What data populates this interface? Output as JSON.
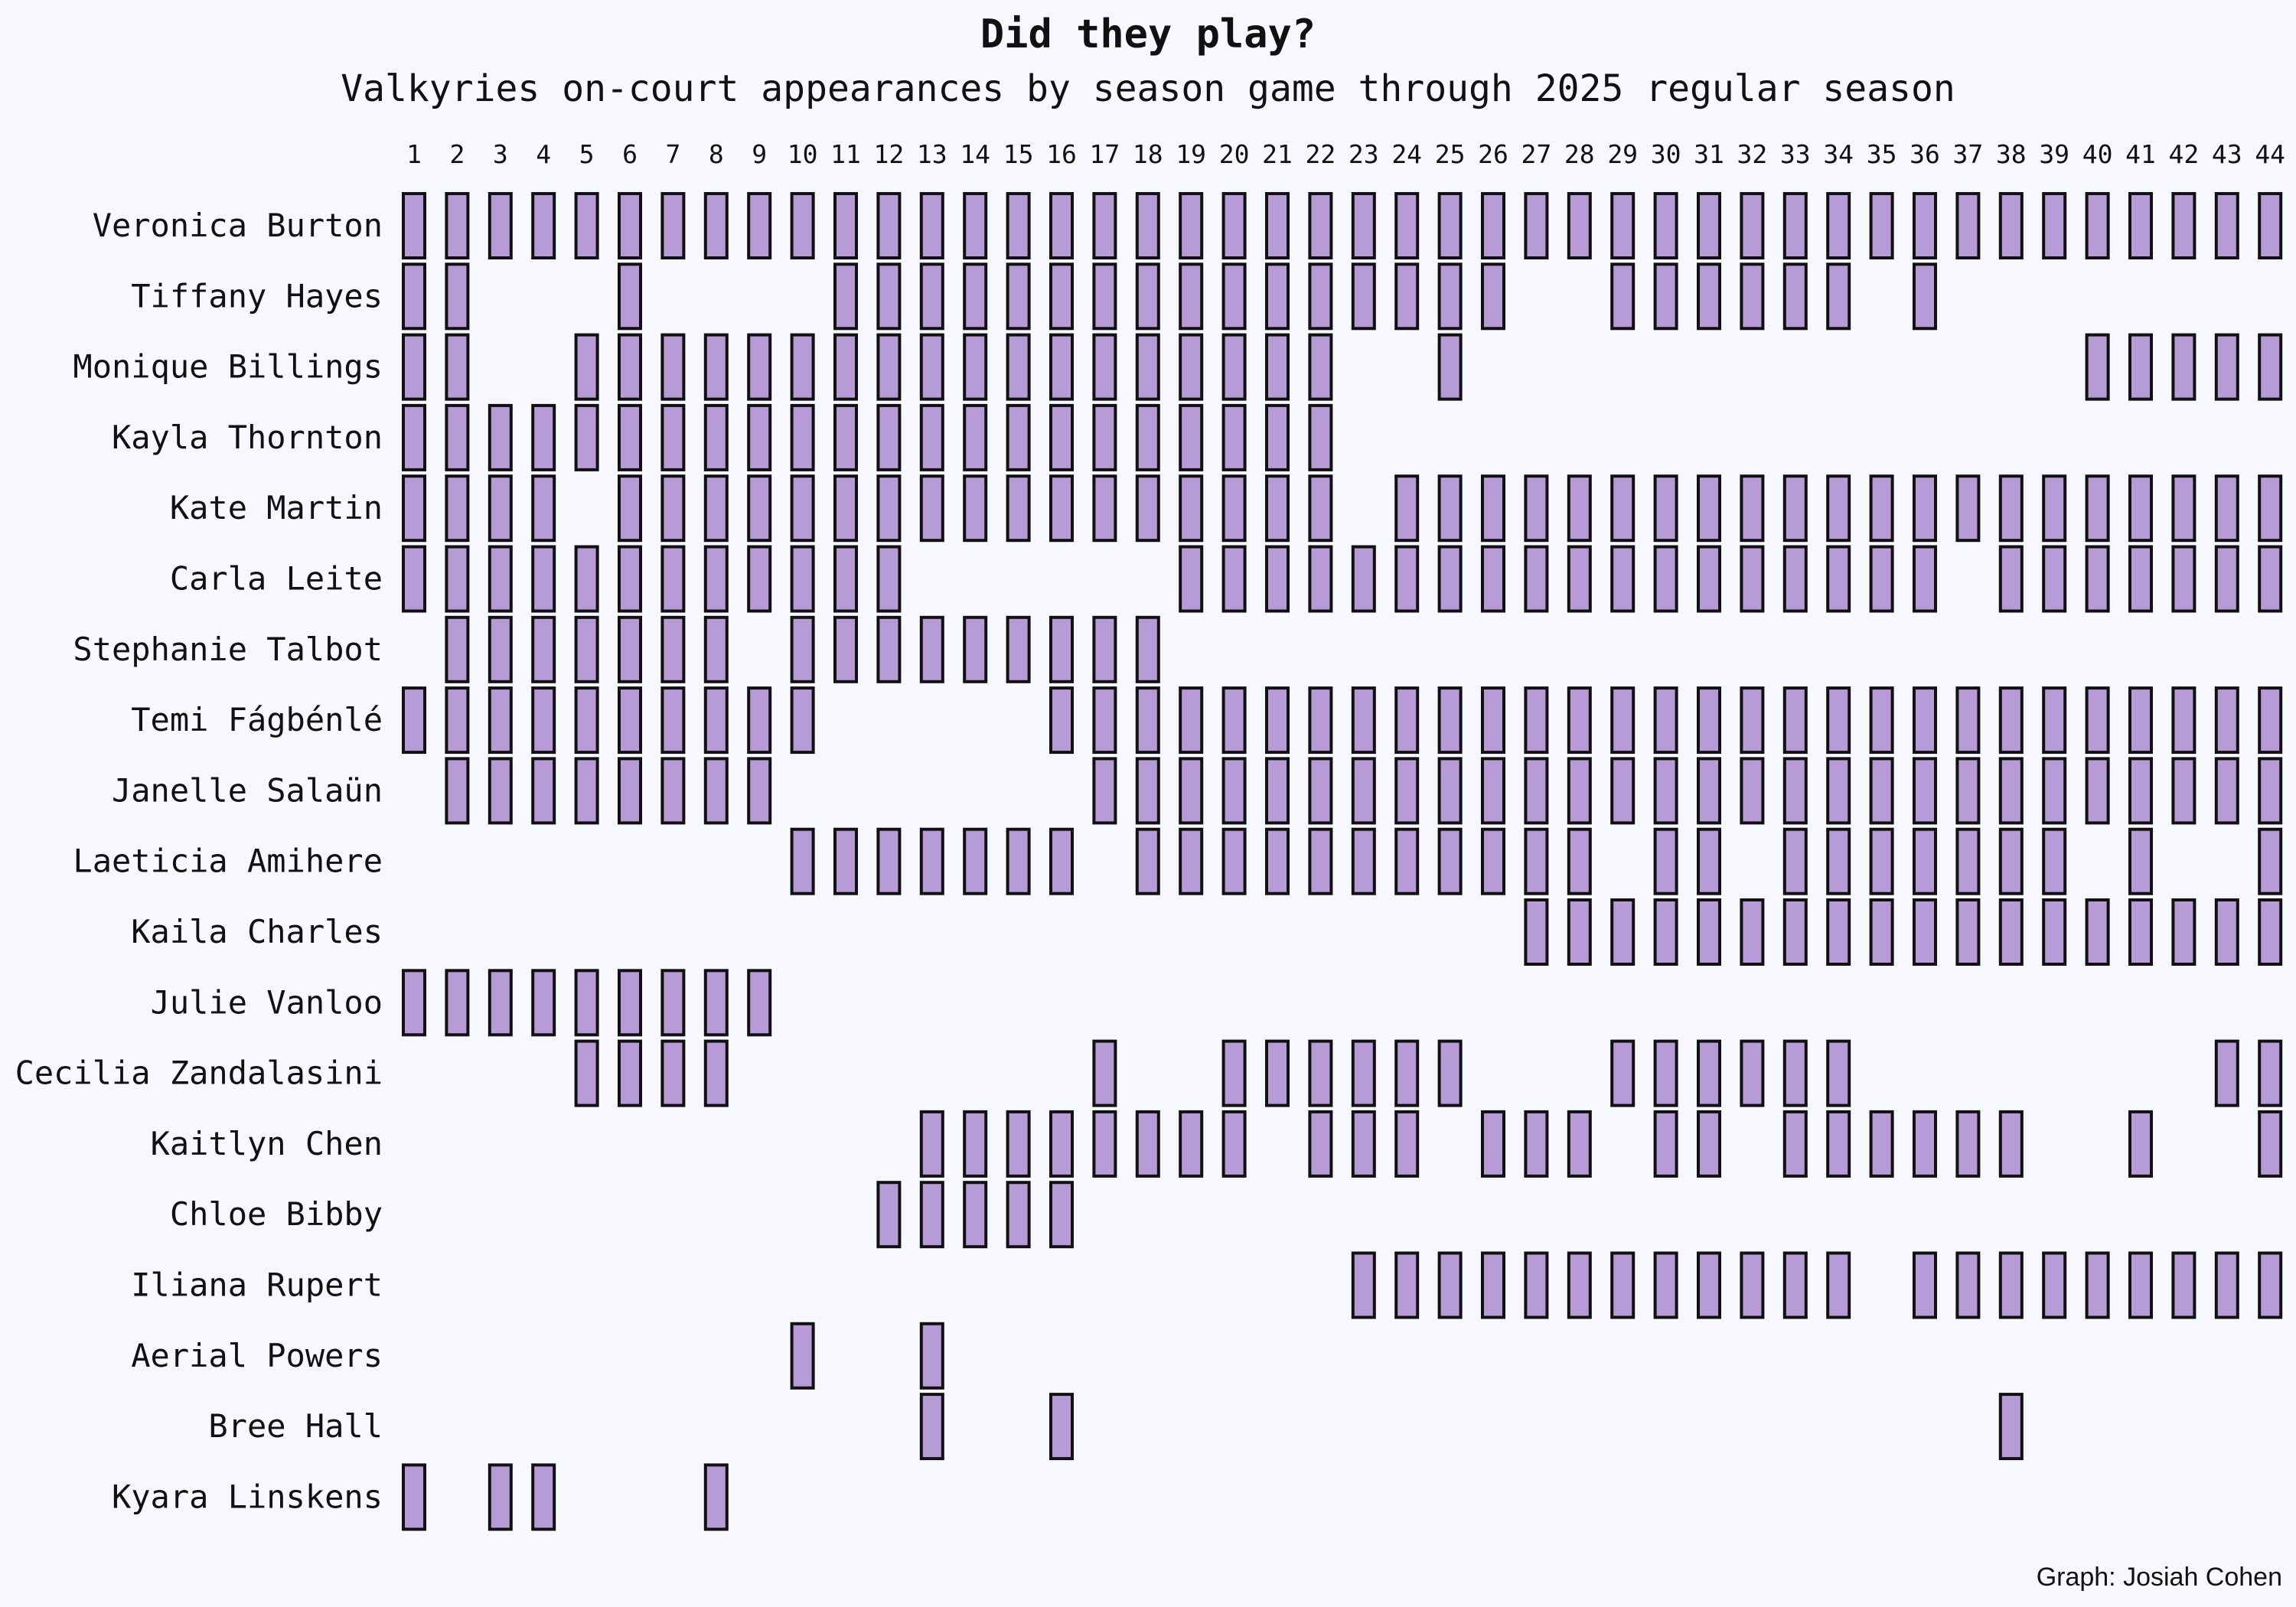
{
  "chart_data": {
    "type": "heatmap",
    "title": "Did they play?",
    "subtitle": "Valkyries on-court appearances by season game through 2025 regular season",
    "credit": "Graph: Josiah Cohen",
    "fill_color": "#b79bd6",
    "outline_color": "#111111",
    "background": "#f7f8fd",
    "games": [
      1,
      2,
      3,
      4,
      5,
      6,
      7,
      8,
      9,
      10,
      11,
      12,
      13,
      14,
      15,
      16,
      17,
      18,
      19,
      20,
      21,
      22,
      23,
      24,
      25,
      26,
      27,
      28,
      29,
      30,
      31,
      32,
      33,
      34,
      35,
      36,
      37,
      38,
      39,
      40,
      41,
      42,
      43,
      44
    ],
    "players": [
      {
        "name": "Veronica Burton",
        "played": [
          1,
          2,
          3,
          4,
          5,
          6,
          7,
          8,
          9,
          10,
          11,
          12,
          13,
          14,
          15,
          16,
          17,
          18,
          19,
          20,
          21,
          22,
          23,
          24,
          25,
          26,
          27,
          28,
          29,
          30,
          31,
          32,
          33,
          34,
          35,
          36,
          37,
          38,
          39,
          40,
          41,
          42,
          43,
          44
        ]
      },
      {
        "name": "Tiffany Hayes",
        "played": [
          1,
          2,
          6,
          11,
          12,
          13,
          14,
          15,
          16,
          17,
          18,
          19,
          20,
          21,
          22,
          23,
          24,
          25,
          26,
          29,
          30,
          31,
          32,
          33,
          34,
          36
        ]
      },
      {
        "name": "Monique Billings",
        "played": [
          1,
          2,
          5,
          6,
          7,
          8,
          9,
          10,
          11,
          12,
          13,
          14,
          15,
          16,
          17,
          18,
          19,
          20,
          21,
          22,
          25,
          40,
          41,
          42,
          43,
          44
        ]
      },
      {
        "name": "Kayla Thornton",
        "played": [
          1,
          2,
          3,
          4,
          5,
          6,
          7,
          8,
          9,
          10,
          11,
          12,
          13,
          14,
          15,
          16,
          17,
          18,
          19,
          20,
          21,
          22
        ]
      },
      {
        "name": "Kate Martin",
        "played": [
          1,
          2,
          3,
          4,
          6,
          7,
          8,
          9,
          10,
          11,
          12,
          13,
          14,
          15,
          16,
          17,
          18,
          19,
          20,
          21,
          22,
          24,
          25,
          26,
          27,
          28,
          29,
          30,
          31,
          32,
          33,
          34,
          35,
          36,
          37,
          38,
          39,
          40,
          41,
          42,
          43,
          44
        ]
      },
      {
        "name": "Carla Leite",
        "played": [
          1,
          2,
          3,
          4,
          5,
          6,
          7,
          8,
          9,
          10,
          11,
          12,
          19,
          20,
          21,
          22,
          23,
          24,
          25,
          26,
          27,
          28,
          29,
          30,
          31,
          32,
          33,
          34,
          35,
          36,
          38,
          39,
          40,
          41,
          42,
          43,
          44
        ]
      },
      {
        "name": "Stephanie Talbot",
        "played": [
          2,
          3,
          4,
          5,
          6,
          7,
          8,
          10,
          11,
          12,
          13,
          14,
          15,
          16,
          17,
          18
        ]
      },
      {
        "name": "Temi Fágbénlé",
        "played": [
          1,
          2,
          3,
          4,
          5,
          6,
          7,
          8,
          9,
          10,
          16,
          17,
          18,
          19,
          20,
          21,
          22,
          23,
          24,
          25,
          26,
          27,
          28,
          29,
          30,
          31,
          32,
          33,
          34,
          35,
          36,
          37,
          38,
          39,
          40,
          41,
          42,
          43,
          44
        ]
      },
      {
        "name": "Janelle Salaün",
        "played": [
          2,
          3,
          4,
          5,
          6,
          7,
          8,
          9,
          17,
          18,
          19,
          20,
          21,
          22,
          23,
          24,
          25,
          26,
          27,
          28,
          29,
          30,
          31,
          32,
          33,
          34,
          35,
          36,
          37,
          38,
          39,
          40,
          41,
          42,
          43,
          44
        ]
      },
      {
        "name": "Laeticia Amihere",
        "played": [
          10,
          11,
          12,
          13,
          14,
          15,
          16,
          18,
          19,
          20,
          21,
          22,
          23,
          24,
          25,
          26,
          27,
          28,
          30,
          31,
          33,
          34,
          35,
          36,
          37,
          38,
          39,
          41,
          44
        ]
      },
      {
        "name": "Kaila Charles",
        "played": [
          27,
          28,
          29,
          30,
          31,
          32,
          33,
          34,
          35,
          36,
          37,
          38,
          39,
          40,
          41,
          42,
          43,
          44
        ]
      },
      {
        "name": "Julie Vanloo",
        "played": [
          1,
          2,
          3,
          4,
          5,
          6,
          7,
          8,
          9
        ]
      },
      {
        "name": "Cecilia Zandalasini",
        "played": [
          5,
          6,
          7,
          8,
          17,
          20,
          21,
          22,
          23,
          24,
          25,
          29,
          30,
          31,
          32,
          33,
          34,
          43,
          44
        ]
      },
      {
        "name": "Kaitlyn Chen",
        "played": [
          13,
          14,
          15,
          16,
          17,
          18,
          19,
          20,
          22,
          23,
          24,
          26,
          27,
          28,
          30,
          31,
          33,
          34,
          35,
          36,
          37,
          38,
          41,
          44
        ]
      },
      {
        "name": "Chloe Bibby",
        "played": [
          12,
          13,
          14,
          15,
          16
        ]
      },
      {
        "name": "Iliana Rupert",
        "played": [
          23,
          24,
          25,
          26,
          27,
          28,
          29,
          30,
          31,
          32,
          33,
          34,
          36,
          37,
          38,
          39,
          40,
          41,
          42,
          43,
          44
        ]
      },
      {
        "name": "Aerial Powers",
        "played": [
          10,
          13
        ]
      },
      {
        "name": "Bree Hall",
        "played": [
          13,
          16,
          38
        ]
      },
      {
        "name": "Kyara Linskens",
        "played": [
          1,
          3,
          4,
          8
        ]
      }
    ]
  }
}
